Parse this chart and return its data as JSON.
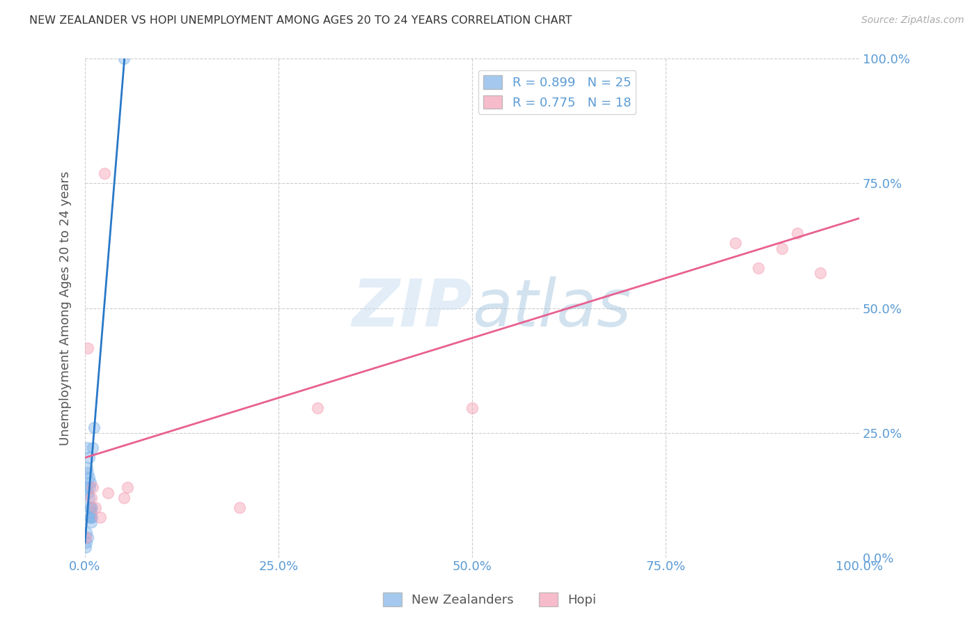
{
  "title": "NEW ZEALANDER VS HOPI UNEMPLOYMENT AMONG AGES 20 TO 24 YEARS CORRELATION CHART",
  "source": "Source: ZipAtlas.com",
  "ylabel": "Unemployment Among Ages 20 to 24 years",
  "xlim": [
    0,
    1.0
  ],
  "ylim": [
    0,
    1.0
  ],
  "xticks": [
    0.0,
    0.25,
    0.5,
    0.75,
    1.0
  ],
  "yticks": [
    0.0,
    0.25,
    0.5,
    0.75,
    1.0
  ],
  "xtick_labels": [
    "0.0%",
    "25.0%",
    "50.0%",
    "75.0%",
    "100.0%"
  ],
  "ytick_labels": [
    "0.0%",
    "25.0%",
    "50.0%",
    "75.0%",
    "100.0%"
  ],
  "nz_color": "#7fb3e8",
  "hopi_color": "#f4a0b5",
  "nz_line_color": "#2878c8",
  "hopi_line_color": "#e86090",
  "nz_R": "0.899",
  "nz_N": "25",
  "hopi_R": "0.775",
  "hopi_N": "18",
  "legend_label_nz": "New Zealanders",
  "legend_label_hopi": "Hopi",
  "nz_scatter_x": [
    0.001,
    0.002,
    0.002,
    0.003,
    0.003,
    0.003,
    0.004,
    0.004,
    0.004,
    0.005,
    0.005,
    0.005,
    0.006,
    0.006,
    0.006,
    0.007,
    0.007,
    0.007,
    0.008,
    0.008,
    0.009,
    0.009,
    0.01,
    0.012,
    0.05
  ],
  "nz_scatter_y": [
    0.02,
    0.03,
    0.05,
    0.14,
    0.18,
    0.22,
    0.04,
    0.13,
    0.17,
    0.12,
    0.16,
    0.2,
    0.08,
    0.1,
    0.14,
    0.08,
    0.1,
    0.15,
    0.07,
    0.09,
    0.08,
    0.1,
    0.22,
    0.26,
    1.0
  ],
  "hopi_scatter_x": [
    0.001,
    0.004,
    0.008,
    0.01,
    0.013,
    0.02,
    0.025,
    0.03,
    0.05,
    0.055,
    0.2,
    0.3,
    0.5,
    0.84,
    0.87,
    0.9,
    0.92,
    0.95
  ],
  "hopi_scatter_y": [
    0.04,
    0.42,
    0.12,
    0.14,
    0.1,
    0.08,
    0.77,
    0.13,
    0.12,
    0.14,
    0.1,
    0.3,
    0.3,
    0.63,
    0.58,
    0.62,
    0.65,
    0.57
  ],
  "nz_line_x": [
    0.0,
    0.052
  ],
  "nz_line_y": [
    0.03,
    1.02
  ],
  "hopi_line_x": [
    0.0,
    1.0
  ],
  "hopi_line_y": [
    0.2,
    0.68
  ],
  "background_color": "#ffffff",
  "grid_color": "#cccccc",
  "title_color": "#333333",
  "axis_label_color": "#555555",
  "tick_color": "#5b9bd5",
  "watermark_zip": "ZIP",
  "watermark_atlas": "atlas",
  "marker_size": 130,
  "marker_alpha": 0.45,
  "marker_edge_alpha": 0.8,
  "marker_linewidth": 1.2
}
